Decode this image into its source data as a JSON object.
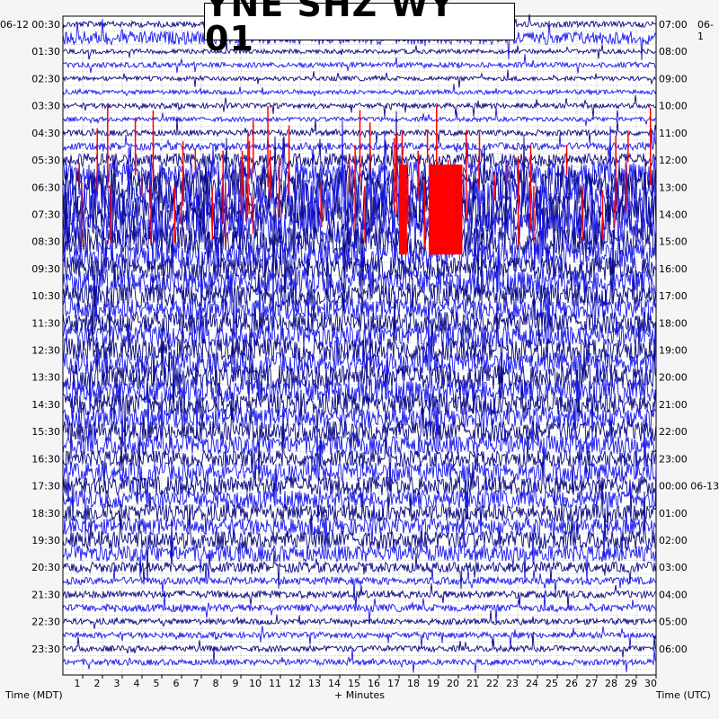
{
  "title": "YNE SHZ WY 01",
  "chart_data": {
    "type": "helicorder",
    "title": "YNE SHZ WY 01",
    "left_corner_label": "06-12",
    "right_corner_label": "06-1",
    "xlabel": "+ Minutes",
    "left_axis_title": "Time (MDT)",
    "right_axis_title": "Time (UTC)",
    "xlim": [
      0,
      30
    ],
    "x_ticks": [
      "1",
      "2",
      "3",
      "4",
      "5",
      "6",
      "7",
      "8",
      "9",
      "10",
      "11",
      "12",
      "13",
      "14",
      "15",
      "16",
      "17",
      "18",
      "19",
      "20",
      "21",
      "22",
      "23",
      "24",
      "25",
      "26",
      "27",
      "28",
      "29",
      "30"
    ],
    "left_times": [
      "00:30",
      "01:30",
      "02:30",
      "03:30",
      "04:30",
      "05:30",
      "06:30",
      "07:30",
      "08:30",
      "09:30",
      "10:30",
      "11:30",
      "12:30",
      "13:30",
      "14:30",
      "15:30",
      "16:30",
      "17:30",
      "18:30",
      "19:30",
      "20:30",
      "21:30",
      "22:30",
      "23:30"
    ],
    "right_times": [
      "07:00",
      "08:00",
      "09:00",
      "10:00",
      "11:00",
      "12:00",
      "13:00",
      "14:00",
      "15:00",
      "16:00",
      "17:00",
      "18:00",
      "19:00",
      "20:00",
      "21:00",
      "22:00",
      "23:00",
      "00:00 06-13",
      "01:00",
      "02:00",
      "03:00",
      "04:00",
      "05:00",
      "06:00"
    ],
    "trace_count": 48,
    "trace_colors": [
      "#0a0a80",
      "#1a1aee"
    ],
    "clip_color": "#ff0000",
    "grid": "dotted",
    "amplitude_profile": [
      0.4,
      0.9,
      0.3,
      0.35,
      0.3,
      0.3,
      0.35,
      0.3,
      0.4,
      0.5,
      0.9,
      1.6,
      2.6,
      3.0,
      2.6,
      2.4,
      2.0,
      1.9,
      1.6,
      1.7,
      1.6,
      1.4,
      1.5,
      1.5,
      1.6,
      1.5,
      1.7,
      1.6,
      1.6,
      1.4,
      1.4,
      1.3,
      1.1,
      1.3,
      1.3,
      1.2,
      1.2,
      1.1,
      1.2,
      1.1,
      0.7,
      0.5,
      0.5,
      0.5,
      0.4,
      0.4,
      0.4,
      0.4
    ],
    "clipped_events": [
      {
        "trace": 11,
        "start_min": 17.0,
        "end_min": 17.4
      },
      {
        "trace": 11,
        "start_min": 18.5,
        "end_min": 20.2
      }
    ]
  }
}
